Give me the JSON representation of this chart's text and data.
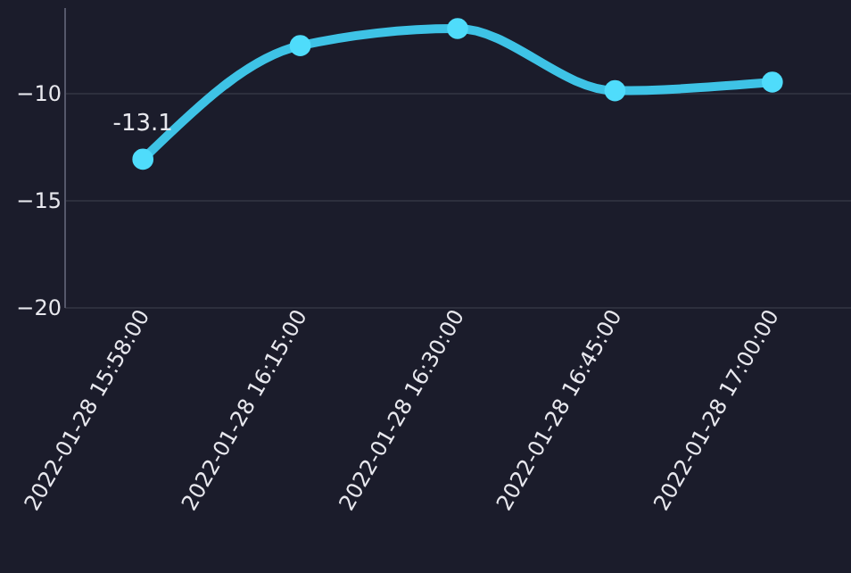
{
  "chart_data": {
    "type": "line",
    "categories": [
      "2022-01-28  15:58:00",
      "2022-01-28  16:15:00",
      "2022-01-28  16:30:00",
      "2022-01-28  16:45:00",
      "2022-01-28  17:00:00"
    ],
    "series": [
      {
        "color": "#3ec3e6",
        "values": [
          -13.1,
          -7.8,
          -7,
          -9.9,
          -9.5
        ],
        "value_labels": [
          "-13.1",
          null,
          null,
          null,
          null
        ]
      }
    ],
    "ylim": [
      -20,
      -6
    ],
    "yticks": [
      -20,
      -15,
      -10
    ],
    "grid": "y",
    "marker": "circle",
    "line_style": "solid"
  }
}
